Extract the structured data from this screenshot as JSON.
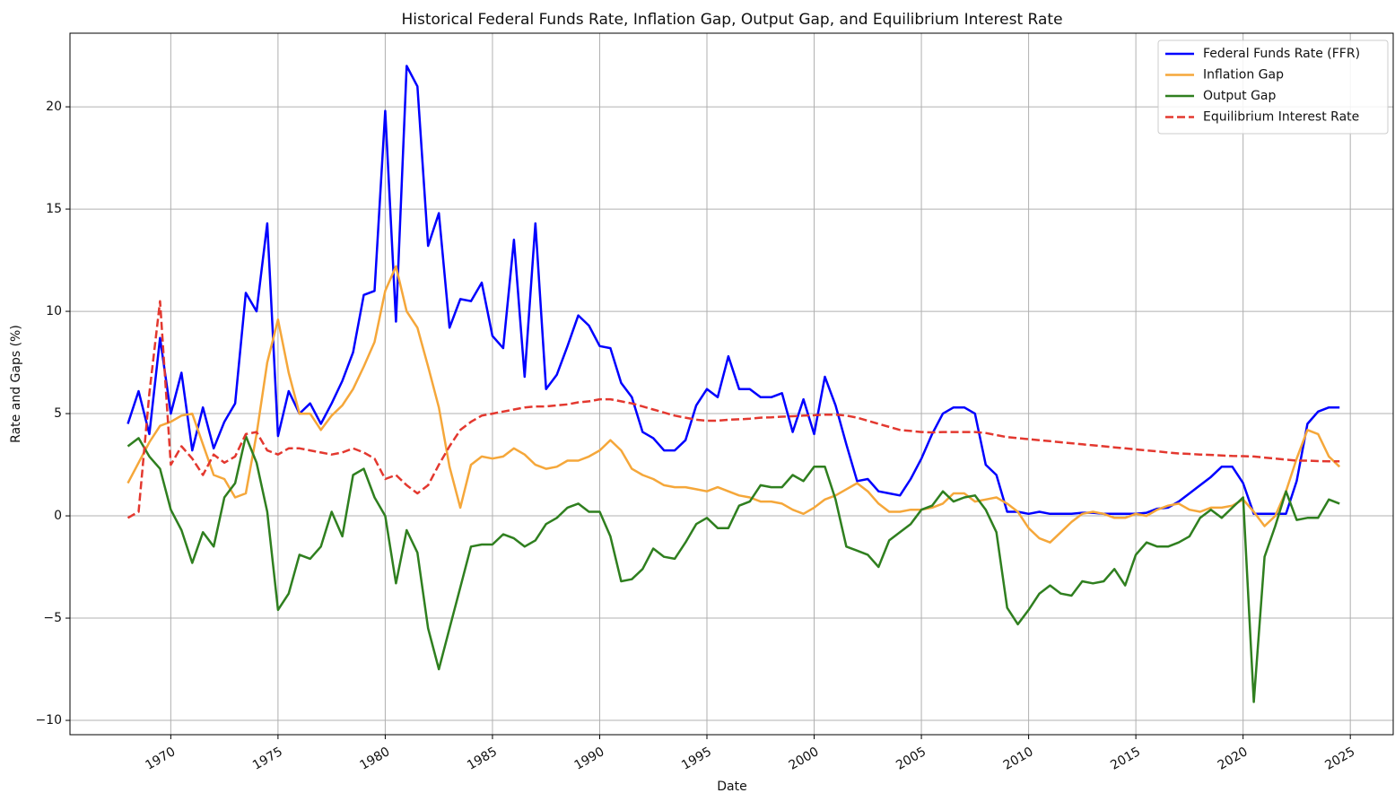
{
  "chart_data": {
    "type": "line",
    "title": "Historical Federal Funds Rate, Inflation Gap, Output Gap, and Equilibrium Interest Rate",
    "xlabel": "Date",
    "ylabel": "Rate and Gaps (%)",
    "x": [
      1968.0,
      1968.5,
      1969.0,
      1969.5,
      1970.0,
      1970.5,
      1971.0,
      1971.5,
      1972.0,
      1972.5,
      1973.0,
      1973.5,
      1974.0,
      1974.5,
      1975.0,
      1975.5,
      1976.0,
      1976.5,
      1977.0,
      1977.5,
      1978.0,
      1978.5,
      1979.0,
      1979.5,
      1980.0,
      1980.5,
      1981.0,
      1981.5,
      1982.0,
      1982.5,
      1983.0,
      1983.5,
      1984.0,
      1984.5,
      1985.0,
      1985.5,
      1986.0,
      1986.5,
      1987.0,
      1987.5,
      1988.0,
      1988.5,
      1989.0,
      1989.5,
      1990.0,
      1990.5,
      1991.0,
      1991.5,
      1992.0,
      1992.5,
      1993.0,
      1993.5,
      1994.0,
      1994.5,
      1995.0,
      1995.5,
      1996.0,
      1996.5,
      1997.0,
      1997.5,
      1998.0,
      1998.5,
      1999.0,
      1999.5,
      2000.0,
      2000.5,
      2001.0,
      2001.5,
      2002.0,
      2002.5,
      2003.0,
      2003.5,
      2004.0,
      2004.5,
      2005.0,
      2005.5,
      2006.0,
      2006.5,
      2007.0,
      2007.5,
      2008.0,
      2008.5,
      2009.0,
      2009.5,
      2010.0,
      2010.5,
      2011.0,
      2011.5,
      2012.0,
      2012.5,
      2013.0,
      2013.5,
      2014.0,
      2014.5,
      2015.0,
      2015.5,
      2016.0,
      2016.5,
      2017.0,
      2017.5,
      2018.0,
      2018.5,
      2019.0,
      2019.5,
      2020.0,
      2020.5,
      2021.0,
      2021.5,
      2022.0,
      2022.5,
      2023.0,
      2023.5,
      2024.0,
      2024.5
    ],
    "series": [
      {
        "name": "Federal Funds Rate (FFR)",
        "color": "#0000ff",
        "dash": false,
        "values": [
          4.5,
          6.1,
          4.0,
          8.7,
          5.0,
          7.0,
          3.2,
          5.3,
          3.3,
          4.6,
          5.5,
          10.9,
          10.0,
          14.3,
          3.9,
          6.1,
          5.0,
          5.5,
          4.5,
          5.5,
          6.6,
          8.0,
          10.8,
          11.0,
          19.8,
          9.5,
          22.0,
          21.0,
          13.2,
          14.8,
          9.2,
          10.6,
          10.5,
          11.4,
          8.8,
          8.2,
          13.5,
          6.8,
          14.3,
          6.2,
          6.9,
          8.3,
          9.8,
          9.3,
          8.3,
          8.2,
          6.5,
          5.8,
          4.1,
          3.8,
          3.2,
          3.2,
          3.7,
          5.4,
          6.2,
          5.8,
          7.8,
          6.2,
          6.2,
          5.8,
          5.8,
          6.0,
          4.1,
          5.7,
          4.0,
          6.8,
          5.4,
          3.5,
          1.7,
          1.8,
          1.2,
          1.1,
          1.0,
          1.8,
          2.8,
          4.0,
          5.0,
          5.3,
          5.3,
          5.0,
          2.5,
          2.0,
          0.2,
          0.2,
          0.1,
          0.2,
          0.1,
          0.1,
          0.1,
          0.15,
          0.15,
          0.1,
          0.1,
          0.1,
          0.1,
          0.15,
          0.35,
          0.4,
          0.7,
          1.1,
          1.5,
          1.9,
          2.4,
          2.4,
          1.6,
          0.1,
          0.1,
          0.1,
          0.1,
          1.7,
          4.5,
          5.1,
          5.3,
          5.3
        ]
      },
      {
        "name": "Inflation Gap",
        "color": "#f5a73a",
        "dash": false,
        "values": [
          1.6,
          2.6,
          3.6,
          4.4,
          4.6,
          4.9,
          5.0,
          3.5,
          2.0,
          1.8,
          0.9,
          1.1,
          4.0,
          7.5,
          9.6,
          7.0,
          5.0,
          5.0,
          4.2,
          4.9,
          5.4,
          6.2,
          7.3,
          8.5,
          11.0,
          12.2,
          10.0,
          9.2,
          7.3,
          5.3,
          2.4,
          0.4,
          2.5,
          2.9,
          2.8,
          2.9,
          3.3,
          3.0,
          2.5,
          2.3,
          2.4,
          2.7,
          2.7,
          2.9,
          3.2,
          3.7,
          3.2,
          2.3,
          2.0,
          1.8,
          1.5,
          1.4,
          1.4,
          1.3,
          1.2,
          1.4,
          1.2,
          1.0,
          0.9,
          0.7,
          0.7,
          0.6,
          0.3,
          0.1,
          0.4,
          0.8,
          1.0,
          1.3,
          1.6,
          1.2,
          0.6,
          0.2,
          0.2,
          0.3,
          0.3,
          0.4,
          0.6,
          1.1,
          1.1,
          0.7,
          0.8,
          0.9,
          0.6,
          0.2,
          -0.6,
          -1.1,
          -1.3,
          -0.8,
          -0.3,
          0.1,
          0.2,
          0.1,
          -0.1,
          -0.1,
          0.1,
          0.0,
          0.3,
          0.5,
          0.6,
          0.3,
          0.2,
          0.4,
          0.4,
          0.5,
          0.8,
          0.2,
          -0.5,
          0.0,
          1.2,
          2.8,
          4.2,
          4.0,
          2.9,
          2.4
        ]
      },
      {
        "name": "Output Gap",
        "color": "#2f7f1f",
        "dash": false,
        "values": [
          3.4,
          3.8,
          2.9,
          2.3,
          0.3,
          -0.7,
          -2.3,
          -0.8,
          -1.5,
          0.9,
          1.6,
          3.9,
          2.6,
          0.2,
          -4.6,
          -3.8,
          -1.9,
          -2.1,
          -1.5,
          0.2,
          -1.0,
          2.0,
          2.3,
          0.9,
          0.0,
          -3.3,
          -0.7,
          -1.8,
          -5.5,
          -7.5,
          -5.5,
          -3.5,
          -1.5,
          -1.4,
          -1.4,
          -0.9,
          -1.1,
          -1.5,
          -1.2,
          -0.4,
          -0.1,
          0.4,
          0.6,
          0.2,
          0.2,
          -1.0,
          -3.2,
          -3.1,
          -2.6,
          -1.6,
          -2.0,
          -2.1,
          -1.3,
          -0.4,
          -0.1,
          -0.6,
          -0.6,
          0.5,
          0.7,
          1.5,
          1.4,
          1.4,
          2.0,
          1.7,
          2.4,
          2.4,
          0.8,
          -1.5,
          -1.7,
          -1.9,
          -2.5,
          -1.2,
          -0.8,
          -0.4,
          0.3,
          0.5,
          1.2,
          0.7,
          0.9,
          1.0,
          0.3,
          -0.8,
          -4.5,
          -5.3,
          -4.6,
          -3.8,
          -3.4,
          -3.8,
          -3.9,
          -3.2,
          -3.3,
          -3.2,
          -2.6,
          -3.4,
          -1.9,
          -1.3,
          -1.5,
          -1.5,
          -1.3,
          -1.0,
          -0.1,
          0.3,
          -0.1,
          0.4,
          0.9,
          -9.1,
          -2.0,
          -0.5,
          1.2,
          -0.2,
          -0.1,
          -0.1,
          0.8,
          0.6
        ]
      },
      {
        "name": "Equilibrium Interest Rate",
        "color": "#e3382f",
        "dash": true,
        "values": [
          -0.1,
          0.2,
          6.0,
          10.5,
          2.5,
          3.4,
          2.8,
          2.0,
          3.0,
          2.6,
          2.9,
          4.0,
          4.1,
          3.2,
          3.0,
          3.3,
          3.3,
          3.2,
          3.1,
          3.0,
          3.1,
          3.3,
          3.1,
          2.8,
          1.8,
          2.0,
          1.5,
          1.1,
          1.5,
          2.5,
          3.4,
          4.2,
          4.6,
          4.9,
          5.0,
          5.1,
          5.2,
          5.3,
          5.35,
          5.35,
          5.4,
          5.45,
          5.55,
          5.6,
          5.7,
          5.7,
          5.6,
          5.5,
          5.35,
          5.2,
          5.05,
          4.9,
          4.8,
          4.7,
          4.65,
          4.65,
          4.7,
          4.72,
          4.75,
          4.8,
          4.82,
          4.85,
          4.87,
          4.9,
          4.92,
          4.95,
          4.95,
          4.9,
          4.8,
          4.65,
          4.5,
          4.35,
          4.2,
          4.15,
          4.1,
          4.08,
          4.1,
          4.1,
          4.1,
          4.1,
          4.05,
          3.95,
          3.85,
          3.8,
          3.75,
          3.7,
          3.65,
          3.6,
          3.55,
          3.5,
          3.45,
          3.4,
          3.35,
          3.3,
          3.25,
          3.2,
          3.15,
          3.1,
          3.05,
          3.03,
          3.0,
          2.98,
          2.95,
          2.93,
          2.92,
          2.9,
          2.85,
          2.8,
          2.75,
          2.7,
          2.7,
          2.68,
          2.67,
          2.67
        ]
      }
    ],
    "xlim": [
      1965.3,
      2027.0
    ],
    "xticks": [
      1970,
      1975,
      1980,
      1985,
      1990,
      1995,
      2000,
      2005,
      2010,
      2015,
      2020,
      2025
    ],
    "ylim": [
      -10.7,
      23.6
    ],
    "yticks": [
      {
        "value": -10,
        "label": "−10"
      },
      {
        "value": -5,
        "label": "−5"
      },
      0,
      5,
      10,
      15,
      20
    ],
    "grid": true,
    "legend": "upper right"
  }
}
